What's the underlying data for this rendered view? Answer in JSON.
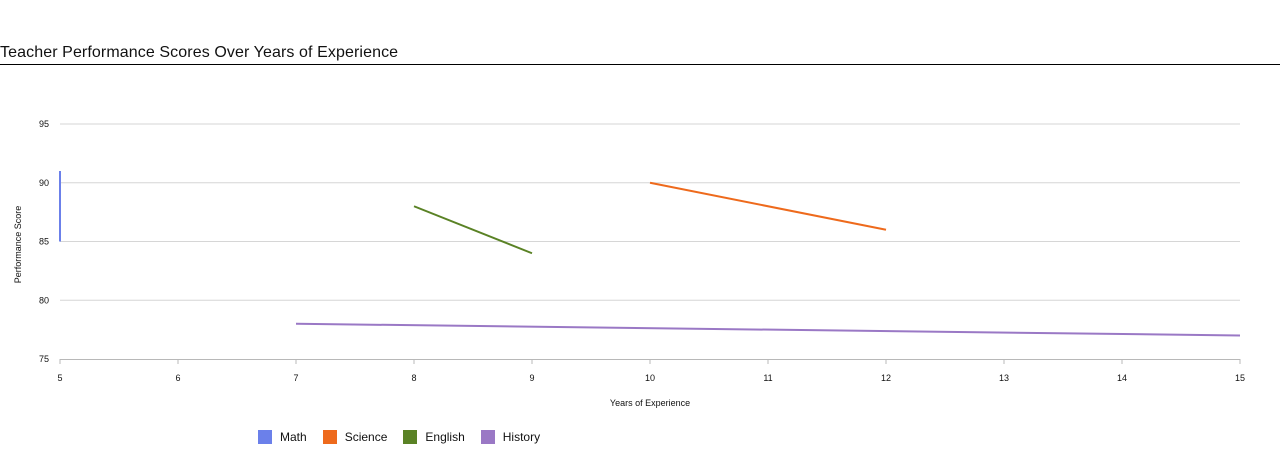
{
  "chart_data": {
    "type": "line",
    "title": "Teacher Performance Scores Over Years of Experience",
    "xlabel": "Years of Experience",
    "ylabel": "Performance Score",
    "xlim": [
      5,
      15
    ],
    "ylim": [
      75,
      95
    ],
    "xticks": [
      5,
      6,
      7,
      8,
      9,
      10,
      11,
      12,
      13,
      14,
      15
    ],
    "yticks": [
      75,
      80,
      85,
      90,
      95
    ],
    "grid": true,
    "legend_position": "bottom-left",
    "series": [
      {
        "name": "Math",
        "color": "#6b80ea",
        "points": [
          [
            5,
            85
          ],
          [
            5,
            91
          ]
        ]
      },
      {
        "name": "Science",
        "color": "#ee6a1c",
        "points": [
          [
            10,
            90
          ],
          [
            12,
            86
          ]
        ]
      },
      {
        "name": "English",
        "color": "#5a8225",
        "points": [
          [
            8,
            88
          ],
          [
            9,
            84
          ]
        ]
      },
      {
        "name": "History",
        "color": "#9a78c5",
        "points": [
          [
            7,
            78
          ],
          [
            15,
            77
          ]
        ]
      }
    ]
  }
}
